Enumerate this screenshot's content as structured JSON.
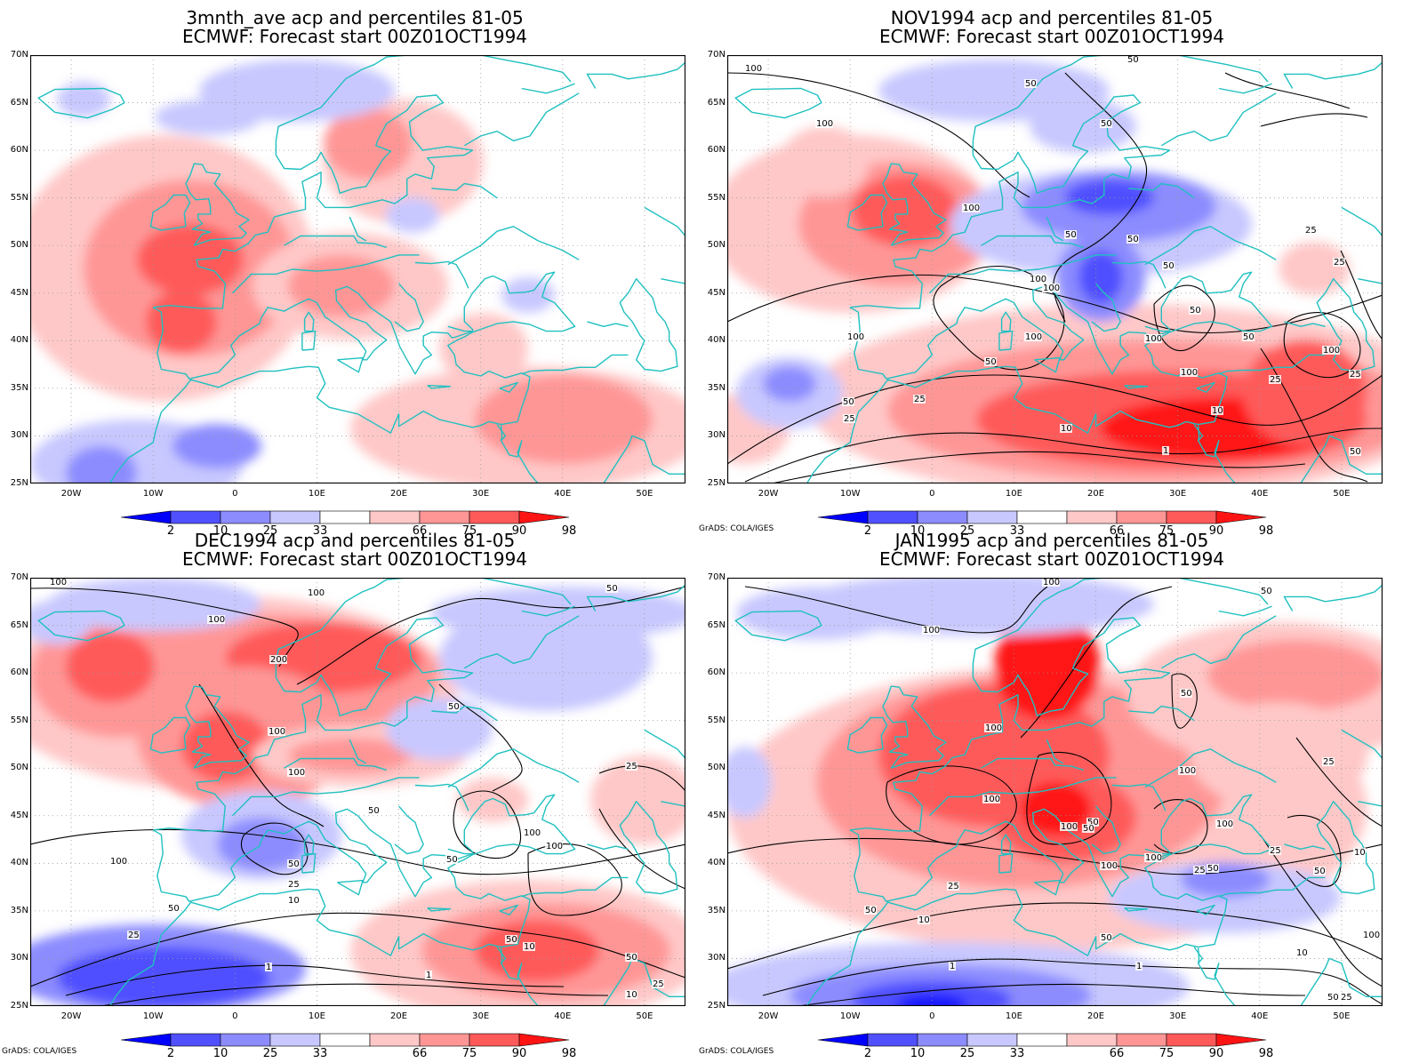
{
  "colors": {
    "c2": "#1414ff",
    "c10": "#5050ff",
    "c25": "#8c8cff",
    "c33": "#c8c8ff",
    "c66": "#ffc8c8",
    "c75": "#ff9696",
    "c90": "#ff5a5a",
    "c98": "#ff1414",
    "coast": "#20c0c0",
    "contour": "#000000"
  },
  "axes": {
    "lat_labels": [
      "70N",
      "65N",
      "60N",
      "55N",
      "50N",
      "45N",
      "40N",
      "35N",
      "30N",
      "25N"
    ],
    "lon_labels": [
      "20W",
      "10W",
      "0",
      "10E",
      "20E",
      "30E",
      "40E",
      "50E"
    ]
  },
  "colorbar": {
    "labels": [
      "2",
      "10",
      "25",
      "33",
      "66",
      "75",
      "90",
      "98"
    ]
  },
  "credit": "GrADS: COLA/IGES",
  "panels": [
    {
      "title1": "3mnth_ave acp and percentiles 81-05",
      "title2": "ECMWF: Forecast start 00Z01OCT1994",
      "show_credit": false,
      "contour_labels": []
    },
    {
      "title1": "NOV1994 acp and percentiles 81-05",
      "title2": "ECMWF: Forecast start 00Z01OCT1994",
      "show_credit": true,
      "contour_labels": [
        "100",
        "50",
        "50",
        "50",
        "100",
        "50",
        "100",
        "50",
        "25",
        "50",
        "100",
        "100",
        "50",
        "100",
        "100",
        "50",
        "100",
        "50",
        "25",
        "25",
        "100",
        "50",
        "10",
        "25",
        "10",
        "1",
        "50",
        "25",
        "100",
        "25"
      ]
    },
    {
      "title1": "DEC1994 acp and percentiles 81-05",
      "title2": "ECMWF: Forecast start 00Z01OCT1994",
      "show_credit": true,
      "contour_labels": [
        "100",
        "100",
        "100",
        "50",
        "200",
        "50",
        "100",
        "100",
        "100",
        "50",
        "25",
        "100",
        "50",
        "100",
        "50",
        "25",
        "10",
        "50",
        "25",
        "1",
        "50",
        "10",
        "1",
        "50",
        "10",
        "25"
      ]
    },
    {
      "title1": "JAN1995 acp and percentiles 81-05",
      "title2": "ECMWF: Forecast start 00Z01OCT1994",
      "show_credit": true,
      "contour_labels": [
        "100",
        "100",
        "50",
        "50",
        "100",
        "25",
        "100",
        "100",
        "50",
        "100",
        "100",
        "25",
        "50",
        "100",
        "10",
        "100",
        "50",
        "50",
        "25",
        "50",
        "25",
        "10",
        "1",
        "1",
        "50",
        "100",
        "10",
        "25",
        "50"
      ]
    }
  ]
}
